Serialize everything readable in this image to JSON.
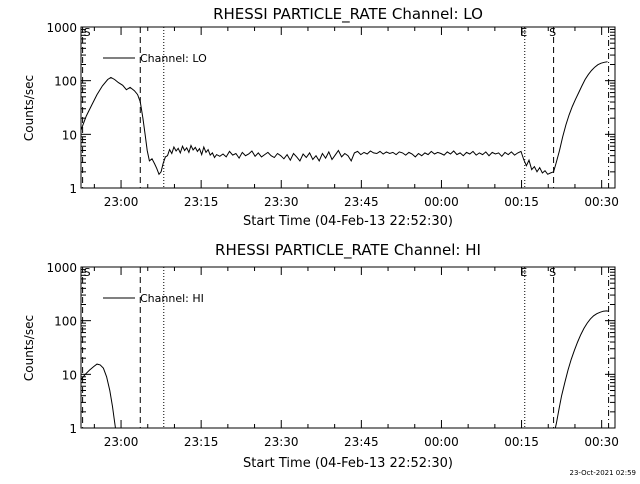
{
  "footer_timestamp": "23-Oct-2021 02:59",
  "chart_data": [
    {
      "type": "line",
      "title": "RHESSI PARTICLE_RATE Channel: LO",
      "xlabel": "Start Time (04-Feb-13 22:52:30)",
      "ylabel": "Counts/sec",
      "y_scale": "log",
      "ylim": [
        1,
        1000
      ],
      "x_unit": "minutes after 22:52:30",
      "xlim": [
        0,
        100
      ],
      "x_ticks": [
        {
          "x": 7.5,
          "label": "23:00"
        },
        {
          "x": 22.5,
          "label": "23:15"
        },
        {
          "x": 37.5,
          "label": "23:30"
        },
        {
          "x": 52.5,
          "label": "23:45"
        },
        {
          "x": 67.5,
          "label": "00:00"
        },
        {
          "x": 82.5,
          "label": "00:15"
        },
        {
          "x": 97.5,
          "label": "00:30"
        }
      ],
      "y_ticks": [
        {
          "y": 1,
          "label": "1"
        },
        {
          "y": 10,
          "label": "10"
        },
        {
          "y": 100,
          "label": "100"
        },
        {
          "y": 1000,
          "label": "1000"
        }
      ],
      "legend": {
        "label": "Channel: LO",
        "position": "top-left"
      },
      "markers": [
        {
          "x": 0.3,
          "style": "dashed",
          "label": "S"
        },
        {
          "x": 11.1,
          "style": "dashed",
          "label": ""
        },
        {
          "x": 15.5,
          "style": "dotted",
          "label": ""
        },
        {
          "x": 83.1,
          "style": "dotted",
          "label": "E"
        },
        {
          "x": 88.5,
          "style": "dashed",
          "label": "S"
        },
        {
          "x": 98.8,
          "style": "dashdot",
          "label": ""
        }
      ],
      "series": [
        {
          "name": "Channel: LO",
          "points": [
            [
              0,
              12
            ],
            [
              1,
              22
            ],
            [
              2,
              35
            ],
            [
              3,
              55
            ],
            [
              4,
              80
            ],
            [
              5,
              105
            ],
            [
              5.6,
              115
            ],
            [
              6.3,
              105
            ],
            [
              7,
              92
            ],
            [
              7.8,
              82
            ],
            [
              8.5,
              68
            ],
            [
              9.2,
              75
            ],
            [
              10,
              65
            ],
            [
              10.6,
              55
            ],
            [
              11.1,
              40
            ],
            [
              11.6,
              20
            ],
            [
              12,
              10
            ],
            [
              12.4,
              5
            ],
            [
              12.8,
              3.2
            ],
            [
              13.3,
              3.5
            ],
            [
              13.8,
              2.8
            ],
            [
              14.2,
              2.3
            ],
            [
              14.6,
              1.8
            ],
            [
              15,
              2.0
            ],
            [
              15.4,
              2.9
            ],
            [
              15.8,
              3.8
            ],
            [
              16.2,
              4.0
            ],
            [
              16.6,
              5.2
            ],
            [
              17,
              4.4
            ],
            [
              17.4,
              5.8
            ],
            [
              17.8,
              4.9
            ],
            [
              18.2,
              5.5
            ],
            [
              18.6,
              4.5
            ],
            [
              19,
              6.0
            ],
            [
              19.4,
              5.0
            ],
            [
              19.8,
              5.6
            ],
            [
              20.2,
              4.6
            ],
            [
              20.6,
              6.2
            ],
            [
              21,
              5.1
            ],
            [
              21.4,
              5.7
            ],
            [
              21.8,
              4.8
            ],
            [
              22.2,
              5.4
            ],
            [
              22.6,
              4.2
            ],
            [
              23,
              5.8
            ],
            [
              23.4,
              4.6
            ],
            [
              23.8,
              5.2
            ],
            [
              24.2,
              4.1
            ],
            [
              24.6,
              4.5
            ],
            [
              25,
              3.7
            ],
            [
              25.4,
              4.2
            ],
            [
              26,
              3.9
            ],
            [
              26.6,
              4.3
            ],
            [
              27.2,
              3.8
            ],
            [
              27.8,
              4.8
            ],
            [
              28.4,
              4.1
            ],
            [
              29,
              4.4
            ],
            [
              29.6,
              3.6
            ],
            [
              30.2,
              4.6
            ],
            [
              30.8,
              4.0
            ],
            [
              31.4,
              4.3
            ],
            [
              32,
              4.9
            ],
            [
              32.6,
              3.9
            ],
            [
              33.2,
              4.5
            ],
            [
              33.8,
              3.8
            ],
            [
              34.4,
              4.2
            ],
            [
              35,
              4.6
            ],
            [
              35.6,
              4.0
            ],
            [
              36.2,
              3.7
            ],
            [
              36.8,
              4.4
            ],
            [
              37.4,
              4.0
            ],
            [
              38,
              3.5
            ],
            [
              38.6,
              4.2
            ],
            [
              39.2,
              3.3
            ],
            [
              39.8,
              4.4
            ],
            [
              40.4,
              3.8
            ],
            [
              41,
              3.2
            ],
            [
              41.6,
              4.3
            ],
            [
              42.2,
              3.7
            ],
            [
              42.8,
              4.5
            ],
            [
              43.4,
              3.4
            ],
            [
              44,
              4.0
            ],
            [
              44.6,
              3.2
            ],
            [
              45.2,
              4.4
            ],
            [
              45.8,
              3.6
            ],
            [
              46.4,
              4.7
            ],
            [
              47,
              3.4
            ],
            [
              47.6,
              4.1
            ],
            [
              48.2,
              5.0
            ],
            [
              48.8,
              3.8
            ],
            [
              49.4,
              4.4
            ],
            [
              50,
              4.0
            ],
            [
              50.6,
              3.2
            ],
            [
              51.2,
              4.5
            ],
            [
              51.8,
              4.8
            ],
            [
              52.4,
              4.2
            ],
            [
              53,
              4.6
            ],
            [
              53.6,
              4.3
            ],
            [
              54.2,
              4.9
            ],
            [
              54.8,
              4.5
            ],
            [
              55.4,
              4.4
            ],
            [
              56,
              4.8
            ],
            [
              56.6,
              4.3
            ],
            [
              57.2,
              4.7
            ],
            [
              57.8,
              4.4
            ],
            [
              58.4,
              4.6
            ],
            [
              59,
              4.2
            ],
            [
              59.6,
              4.7
            ],
            [
              60.2,
              4.5
            ],
            [
              60.8,
              4.1
            ],
            [
              61.4,
              4.6
            ],
            [
              62,
              4.3
            ],
            [
              62.6,
              3.8
            ],
            [
              63.2,
              4.4
            ],
            [
              63.8,
              4.0
            ],
            [
              64.4,
              4.5
            ],
            [
              65,
              4.2
            ],
            [
              65.6,
              4.8
            ],
            [
              66.2,
              4.3
            ],
            [
              66.8,
              4.6
            ],
            [
              67.4,
              4.4
            ],
            [
              68,
              4.1
            ],
            [
              68.6,
              4.7
            ],
            [
              69.2,
              4.3
            ],
            [
              69.8,
              4.9
            ],
            [
              70.4,
              4.2
            ],
            [
              71,
              4.5
            ],
            [
              71.6,
              4.0
            ],
            [
              72.2,
              4.6
            ],
            [
              72.8,
              4.3
            ],
            [
              73.4,
              4.8
            ],
            [
              74,
              4.1
            ],
            [
              74.6,
              4.5
            ],
            [
              75.2,
              4.2
            ],
            [
              75.8,
              4.7
            ],
            [
              76.4,
              4.0
            ],
            [
              77,
              4.6
            ],
            [
              77.6,
              4.3
            ],
            [
              78.2,
              4.5
            ],
            [
              78.8,
              3.9
            ],
            [
              79.4,
              4.6
            ],
            [
              80,
              4.2
            ],
            [
              80.6,
              4.7
            ],
            [
              81.2,
              4.1
            ],
            [
              81.8,
              4.5
            ],
            [
              82.4,
              4.8
            ],
            [
              82.9,
              3.4
            ],
            [
              83.4,
              2.6
            ],
            [
              83.9,
              3.3
            ],
            [
              84.4,
              2.2
            ],
            [
              84.9,
              2.5
            ],
            [
              85.4,
              2.0
            ],
            [
              85.9,
              2.4
            ],
            [
              86.4,
              1.9
            ],
            [
              86.9,
              2.1
            ],
            [
              87.4,
              1.8
            ],
            [
              87.9,
              1.9
            ],
            [
              88.5,
              2.0
            ],
            [
              89,
              3.0
            ],
            [
              89.6,
              5.0
            ],
            [
              90.2,
              9.0
            ],
            [
              90.8,
              15
            ],
            [
              91.4,
              23
            ],
            [
              92,
              33
            ],
            [
              92.6,
              45
            ],
            [
              93.2,
              60
            ],
            [
              93.8,
              80
            ],
            [
              94.4,
              105
            ],
            [
              95,
              130
            ],
            [
              95.6,
              155
            ],
            [
              96.2,
              178
            ],
            [
              96.8,
              198
            ],
            [
              97.4,
              212
            ],
            [
              98,
              220
            ],
            [
              98.6,
              226
            ]
          ]
        }
      ]
    },
    {
      "type": "line",
      "title": "RHESSI PARTICLE_RATE Channel: HI",
      "xlabel": "Start Time (04-Feb-13 22:52:30)",
      "ylabel": "Counts/sec",
      "y_scale": "log",
      "ylim": [
        1,
        1000
      ],
      "x_unit": "minutes after 22:52:30",
      "xlim": [
        0,
        100
      ],
      "x_ticks": [
        {
          "x": 7.5,
          "label": "23:00"
        },
        {
          "x": 22.5,
          "label": "23:15"
        },
        {
          "x": 37.5,
          "label": "23:30"
        },
        {
          "x": 52.5,
          "label": "23:45"
        },
        {
          "x": 67.5,
          "label": "00:00"
        },
        {
          "x": 82.5,
          "label": "00:15"
        },
        {
          "x": 97.5,
          "label": "00:30"
        }
      ],
      "y_ticks": [
        {
          "y": 1,
          "label": "1"
        },
        {
          "y": 10,
          "label": "10"
        },
        {
          "y": 100,
          "label": "100"
        },
        {
          "y": 1000,
          "label": "1000"
        }
      ],
      "legend": {
        "label": "Channel: HI",
        "position": "top-left"
      },
      "markers": [
        {
          "x": 0.3,
          "style": "dashed",
          "label": "S"
        },
        {
          "x": 11.1,
          "style": "dashed",
          "label": ""
        },
        {
          "x": 15.5,
          "style": "dotted",
          "label": ""
        },
        {
          "x": 83.1,
          "style": "dotted",
          "label": "E"
        },
        {
          "x": 88.5,
          "style": "dashed",
          "label": "S"
        },
        {
          "x": 98.8,
          "style": "dashdot",
          "label": ""
        }
      ],
      "series": [
        {
          "name": "Channel: HI",
          "points": [
            [
              0,
              8
            ],
            [
              0.8,
              10
            ],
            [
              1.6,
              12
            ],
            [
              2.4,
              14
            ],
            [
              3,
              15.5
            ],
            [
              3.6,
              15
            ],
            [
              4.2,
              13
            ],
            [
              4.8,
              9
            ],
            [
              5.4,
              5
            ],
            [
              5.9,
              2.5
            ],
            [
              6.3,
              1.3
            ],
            [
              6.6,
              0.8
            ]
          ]
        },
        {
          "name": "Channel: HI",
          "points": [
            [
              88.6,
              0.8
            ],
            [
              89,
              1.2
            ],
            [
              89.5,
              2.2
            ],
            [
              90,
              4
            ],
            [
              90.6,
              7
            ],
            [
              91.2,
              12
            ],
            [
              91.8,
              19
            ],
            [
              92.4,
              28
            ],
            [
              93,
              40
            ],
            [
              93.6,
              55
            ],
            [
              94.2,
              72
            ],
            [
              94.8,
              90
            ],
            [
              95.4,
              108
            ],
            [
              96,
              123
            ],
            [
              96.6,
              135
            ],
            [
              97.2,
              143
            ],
            [
              97.8,
              150
            ],
            [
              98.4,
              152
            ],
            [
              98.8,
              150
            ]
          ]
        }
      ]
    }
  ]
}
